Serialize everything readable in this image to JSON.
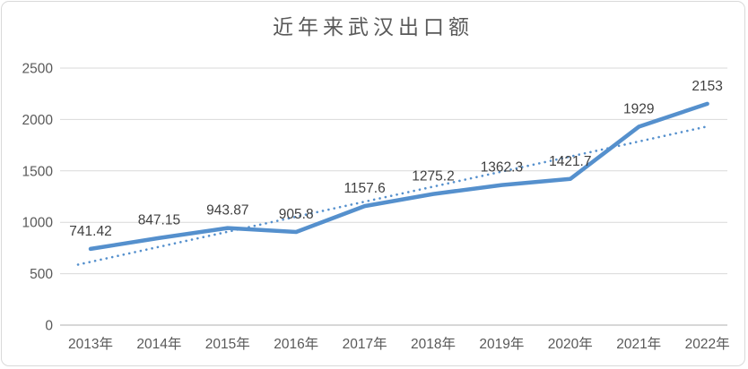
{
  "chart_data": {
    "type": "line",
    "title": "近年来武汉出口额",
    "categories": [
      "2013年",
      "2014年",
      "2015年",
      "2016年",
      "2017年",
      "2018年",
      "2019年",
      "2020年",
      "2021年",
      "2022年"
    ],
    "series": [
      {
        "values": [
          741.42,
          847.15,
          943.87,
          905.8,
          1157.6,
          1275.2,
          1362.3,
          1421.7,
          1929,
          2153
        ]
      }
    ],
    "data_labels": [
      "741.42",
      "847.15",
      "943.87",
      "905.8",
      "1157.6",
      "1275.2",
      "1362.3",
      "1421.7",
      "1929",
      "2153"
    ],
    "yticks": [
      0,
      500,
      1000,
      1500,
      2000,
      2500
    ],
    "ylim": [
      0,
      2500
    ],
    "xlabel": "",
    "ylabel": "",
    "grid": true,
    "legend": "none",
    "trendline": {
      "type": "linear",
      "style": "dotted",
      "start_value": 615,
      "end_value": 1932
    },
    "colors": {
      "series": "#5590CD",
      "trendline": "#5590CD",
      "grid": "#D9D9D9",
      "axis": "#BFBFBF",
      "tick_text": "#595959",
      "data_label_text": "#404040",
      "title_text": "#595959",
      "border": "#D9D9D9",
      "background": "#FFFFFF"
    }
  }
}
